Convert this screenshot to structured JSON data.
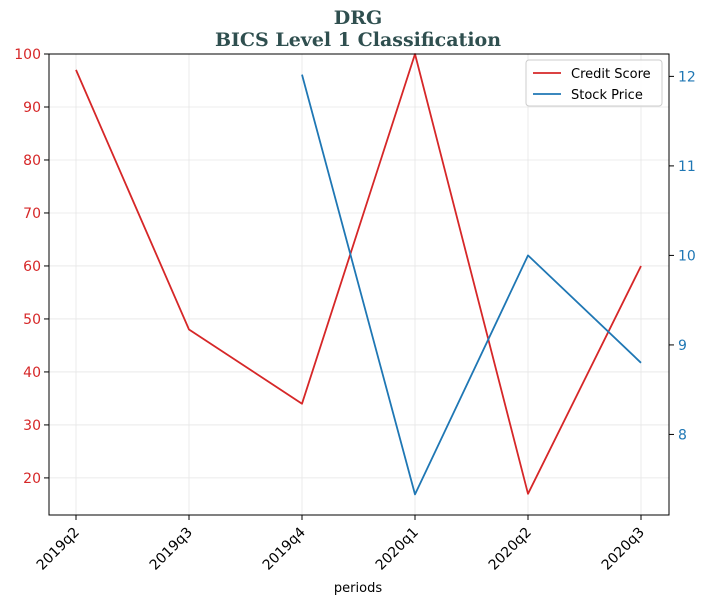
{
  "chart_data": {
    "type": "line",
    "title": "DRG",
    "subtitle": "BICS Level 1 Classification",
    "xlabel": "periods",
    "categories": [
      "2019q2",
      "2019q3",
      "2019q4",
      "2020q1",
      "2020q2",
      "2020q3"
    ],
    "series": [
      {
        "name": "Credit Score",
        "axis": "left",
        "color": "#d62728",
        "values": [
          97,
          48,
          34,
          100,
          17,
          60
        ]
      },
      {
        "name": "Stock Price",
        "axis": "right",
        "color": "#1f77b4",
        "values": [
          null,
          null,
          12.02,
          7.33,
          10.0,
          8.8
        ]
      }
    ],
    "left_axis": {
      "ylim": [
        13,
        100
      ],
      "ticks": [
        20,
        30,
        40,
        50,
        60,
        70,
        80,
        90,
        100
      ],
      "color": "#d62728"
    },
    "right_axis": {
      "ylim": [
        7.1,
        12.25
      ],
      "ticks": [
        8,
        9,
        10,
        11,
        12
      ],
      "color": "#1f77b4"
    },
    "grid": true,
    "legend": "top-right"
  }
}
